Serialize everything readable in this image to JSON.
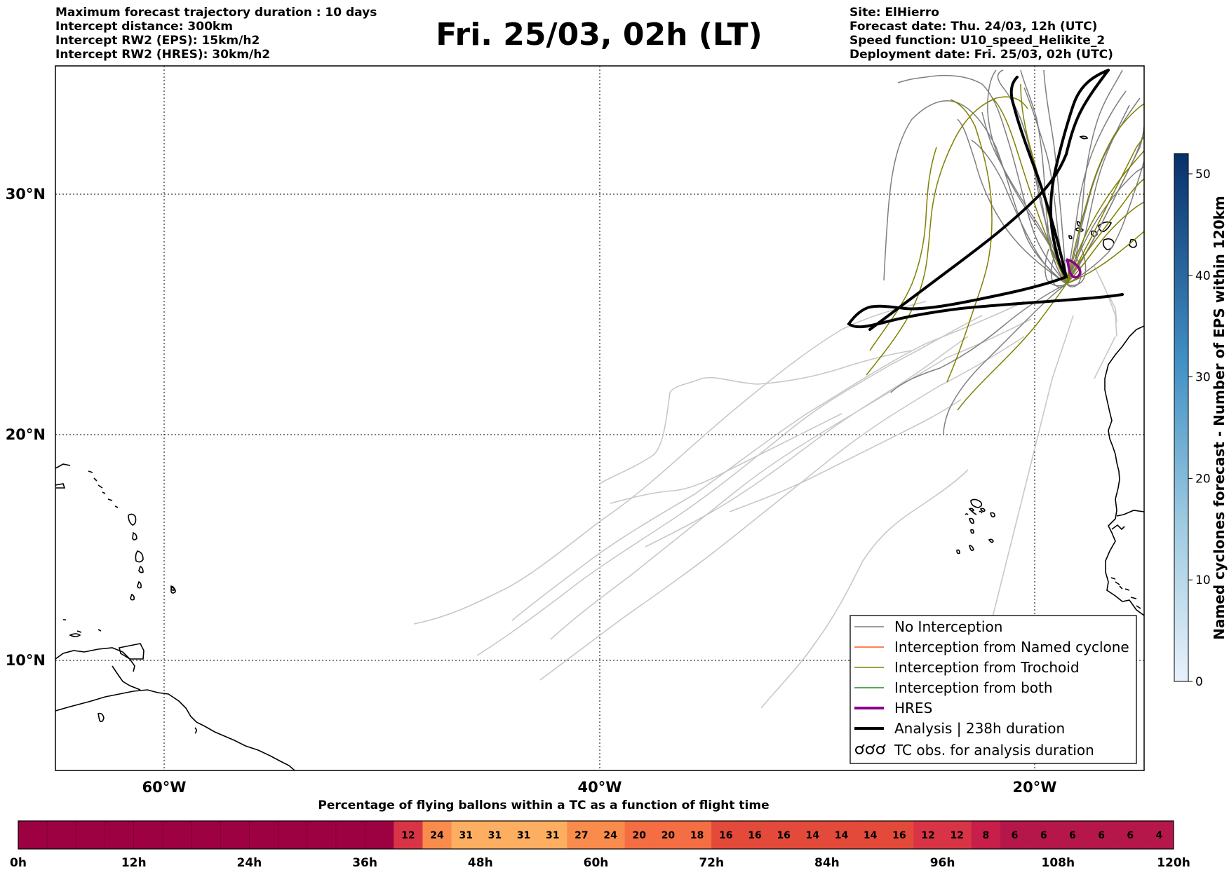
{
  "header": {
    "left_lines": [
      "Maximum forecast trajectory duration : 10 days",
      "Intercept distance: 300km",
      "Intercept RW2 (EPS):  15km/h2",
      "Intercept RW2 (HRES): 30km/h2"
    ],
    "title": "Fri. 25/03, 02h (LT)",
    "right_lines": [
      "Site: ElHierro",
      "Forecast date: Thu. 24/03, 12h (UTC)",
      "Speed function: U10_speed_Helikite_2",
      "Deployment date: Fri. 25/03, 02h (UTC)"
    ]
  },
  "map": {
    "lat_labels": [
      "30°N",
      "20°N",
      "10°N"
    ],
    "lon_labels": [
      "60°W",
      "40°W",
      "20°W"
    ],
    "colors": {
      "no_interception": "#7f7f7f",
      "named_cyclone": "#ff5a1f",
      "trochoid": "#808000",
      "both": "#228b22",
      "hres": "#8b008b",
      "analysis": "#000000",
      "faint_tracks": "#c8c8c8"
    }
  },
  "colorbar": {
    "title": "Named cyclones forecast - Number of EPS within 120km",
    "ticks": [
      "50",
      "40",
      "30",
      "20",
      "10",
      "0"
    ],
    "min": 0,
    "max": 52
  },
  "legend": {
    "items": [
      {
        "label": "No Interception",
        "icon": "thin-gray-line"
      },
      {
        "label": "Interception from Named cyclone",
        "icon": "thin-orange-line"
      },
      {
        "label": "Interception from Trochoid",
        "icon": "thin-olive-line"
      },
      {
        "label": "Interception from both",
        "icon": "thin-green-line"
      },
      {
        "label": "HRES",
        "icon": "thick-purple-line"
      },
      {
        "label": "Analysis | 238h duration",
        "icon": "thick-black-line"
      },
      {
        "label": "TC obs. for analysis duration",
        "icon": "cyclone-symbol-icon"
      }
    ]
  },
  "percent_bar": {
    "title": "Percentage of flying ballons within a TC as a function of flight time",
    "values": [
      12,
      24,
      31,
      31,
      31,
      31,
      27,
      24,
      20,
      20,
      18,
      16,
      16,
      16,
      14,
      14,
      14,
      16,
      12,
      12,
      8,
      6,
      6,
      6,
      6,
      6,
      4
    ],
    "time_labels": [
      "0h",
      "12h",
      "24h",
      "36h",
      "48h",
      "60h",
      "72h",
      "84h",
      "96h",
      "108h",
      "120h"
    ]
  }
}
